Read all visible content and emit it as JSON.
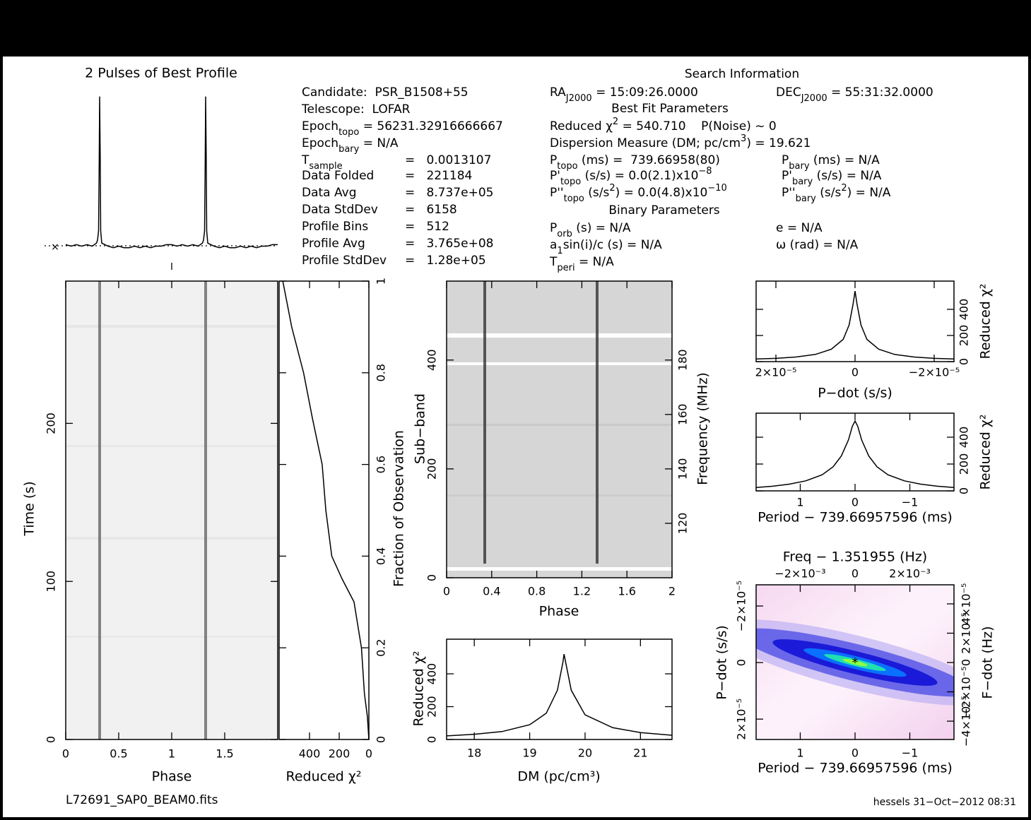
{
  "info": {
    "left": [
      {
        "label": [
          "Candidate:  PSR_B1508+55"
        ]
      },
      {
        "label": [
          "Telescope:  LOFAR"
        ]
      },
      {
        "label": [
          "Epoch",
          {
            "sub": "topo"
          },
          " = 56231.32916666667"
        ]
      },
      {
        "label": [
          "Epoch",
          {
            "sub": "bary"
          },
          " = N/A"
        ]
      },
      {
        "label": [
          "T",
          {
            "sub": "sample"
          }
        ],
        "value": "=   0.0013107"
      },
      {
        "label": [
          "Data Folded"
        ],
        "value": "=   221184"
      },
      {
        "label": [
          "Data Avg"
        ],
        "value": "=   8.737e+05"
      },
      {
        "label": [
          "Data StdDev"
        ],
        "value": "=   6158"
      },
      {
        "label": [
          "Profile Bins"
        ],
        "value": "=   512"
      },
      {
        "label": [
          "Profile Avg"
        ],
        "value": "=   3.765e+08"
      },
      {
        "label": [
          "Profile StdDev"
        ],
        "value": "=   1.28e+05"
      }
    ],
    "search": [
      [
        "Search Information"
      ],
      [
        "RA",
        {
          "sub": "J2000"
        },
        " = 15:09:26.0000"
      ],
      [
        "DEC",
        {
          "sub": "J2000"
        },
        " = 55:31:32.0000"
      ],
      [
        "Best Fit Parameters"
      ],
      [
        "Reduced χ",
        {
          "sup": "2"
        },
        " = 540.710    P(Noise) ~ 0"
      ],
      [
        "Dispersion Measure (DM; pc/cm",
        {
          "sup": "3"
        },
        ") = 19.621"
      ],
      [
        "P",
        {
          "sub": "topo"
        },
        " (ms) =  739.66958(80)"
      ],
      [
        "P",
        {
          "sub": "bary"
        },
        " (ms) = N/A"
      ],
      [
        "P'",
        {
          "sub": "topo"
        },
        " (s/s) = 0.0(2.1)x10",
        {
          "sup": "−8"
        }
      ],
      [
        "P'",
        {
          "sub": "bary"
        },
        " (s/s) = N/A"
      ],
      [
        "P''",
        {
          "sub": "topo"
        },
        " (s/s",
        {
          "sup": "2"
        },
        ") = 0.0(4.8)x10",
        {
          "sup": "−10"
        }
      ],
      [
        "P''",
        {
          "sub": "bary"
        },
        " (s/s",
        {
          "sup": "2"
        },
        ") = N/A"
      ],
      [
        "Binary Parameters"
      ],
      [
        "P",
        {
          "sub": "orb"
        },
        " (s) = N/A"
      ],
      [
        "e = N/A"
      ],
      [
        "a",
        {
          "sub": "1"
        },
        "sin(i)/c (s) = N/A"
      ],
      [
        "ω (rad) = N/A"
      ],
      [
        "T",
        {
          "sub": "peri"
        },
        " = N/A"
      ]
    ]
  },
  "footer": {
    "file": "L72691_SAP0_BEAM0.fits",
    "stamp": "hessels 31−Oct−2012 08:31"
  },
  "chart_data": [
    {
      "type": "line",
      "title": "2 Pulses of Best Profile",
      "xlim": [
        0,
        2
      ],
      "ylim": [
        -0.03,
        1.02
      ],
      "x": [
        0,
        0.05,
        0.1,
        0.15,
        0.2,
        0.25,
        0.29,
        0.3,
        0.31,
        0.315,
        0.32,
        0.325,
        0.33,
        0.34,
        0.4,
        0.45,
        0.5,
        0.55,
        0.6,
        0.65,
        0.7,
        0.75,
        0.8,
        0.85,
        0.9,
        0.95,
        1.0,
        1.05,
        1.1,
        1.15,
        1.2,
        1.25,
        1.29,
        1.3,
        1.31,
        1.315,
        1.32,
        1.325,
        1.33,
        1.34,
        1.4,
        1.45,
        1.5,
        1.55,
        1.6,
        1.65,
        1.7,
        1.75,
        1.8,
        1.85,
        1.9,
        1.95,
        2.0
      ],
      "values": [
        0.01,
        0.0,
        0.01,
        0.0,
        0.01,
        0.0,
        0.02,
        0.04,
        0.1,
        0.5,
        0.98,
        0.6,
        0.1,
        0.02,
        0.0,
        -0.01,
        0.0,
        -0.01,
        -0.01,
        0.0,
        -0.01,
        0.0,
        -0.01,
        0.0,
        0.0,
        0.01,
        0.01,
        0.0,
        0.01,
        0.0,
        0.01,
        0.0,
        0.02,
        0.04,
        0.1,
        0.5,
        0.98,
        0.6,
        0.1,
        0.02,
        0.0,
        -0.01,
        0.0,
        -0.01,
        -0.01,
        0.0,
        -0.01,
        0.0,
        -0.01,
        0.0,
        0.0,
        0.01,
        0.01
      ]
    },
    {
      "type": "image",
      "xlabel": "Phase",
      "ylabel": "Time (s)",
      "xlim": [
        0,
        2
      ],
      "xticks": [
        0,
        0.5,
        1,
        1.5
      ],
      "ylim": [
        0,
        290
      ],
      "yticks": [
        0,
        100,
        200
      ]
    },
    {
      "type": "hline",
      "xlabel": "Reduced χ²",
      "ylabel": "Fraction of Observation",
      "xlim": [
        605,
        0
      ],
      "xticks": [
        0,
        200,
        400
      ],
      "ylim": [
        0,
        1
      ],
      "yticks": [
        0,
        0.2,
        0.4,
        0.6,
        0.8,
        1
      ],
      "x": [
        0,
        0.05,
        0.1,
        0.2,
        0.3,
        0.35,
        0.4,
        0.5,
        0.6,
        0.7,
        0.8,
        0.9,
        1.0
      ],
      "values": [
        0,
        10,
        30,
        50,
        100,
        180,
        250,
        290,
        315,
        380,
        440,
        520,
        580
      ]
    },
    {
      "type": "image",
      "xlabel": "Phase",
      "ylabel": "Sub−band",
      "y2label": "Frequency (MHz)",
      "xlim": [
        0,
        2
      ],
      "xticks": [
        0,
        0.4,
        0.8,
        1.2,
        1.6,
        2
      ],
      "ylim": [
        0,
        545
      ],
      "yticks": [
        0,
        200,
        400
      ],
      "y2lim": [
        100,
        209
      ],
      "y2ticks": [
        120,
        140,
        160,
        180
      ]
    },
    {
      "type": "line",
      "xlabel": "DM (pc/cm³)",
      "ylabel": "Reduced χ²",
      "xlim": [
        17.5,
        21.57
      ],
      "xticks": [
        18,
        19,
        20,
        21
      ],
      "ylim": [
        0,
        611
      ],
      "yticks": [
        0,
        200,
        400
      ],
      "x": [
        17.5,
        18,
        18.5,
        19,
        19.3,
        19.5,
        19.6,
        19.62,
        19.65,
        19.75,
        20,
        20.5,
        21,
        21.57
      ],
      "values": [
        22,
        32,
        48,
        90,
        160,
        300,
        470,
        520,
        470,
        300,
        150,
        72,
        42,
        26
      ]
    },
    {
      "type": "line",
      "xlabel": "P−dot (s/s)",
      "ylabel": "Reduced χ²",
      "xlim": [
        2.5e-05,
        -2.5e-05
      ],
      "xticks": [
        {
          "value": 2e-05,
          "label": "2×10⁻⁵"
        },
        0,
        {
          "value": -2e-05,
          "label": "−2×10⁻⁵"
        }
      ],
      "ylim": [
        0,
        616
      ],
      "yticks": [
        0,
        200,
        400
      ],
      "x": [
        2.5e-05,
        2e-05,
        1.5e-05,
        1e-05,
        6e-06,
        3e-06,
        1.5e-06,
        5e-07,
        0,
        -5e-07,
        -1.5e-06,
        -3e-06,
        -6e-06,
        -1e-05,
        -1.5e-05,
        -2e-05,
        -2.5e-05
      ],
      "values": [
        20,
        25,
        35,
        55,
        95,
        170,
        280,
        440,
        540,
        440,
        280,
        170,
        95,
        55,
        35,
        25,
        20
      ]
    },
    {
      "type": "line",
      "xlabel": "Period − 739.66957596 (ms)",
      "ylabel": "Reduced χ²",
      "xlim": [
        1.806,
        -1.806
      ],
      "xticks": [
        1,
        0,
        {
          "value": -1,
          "label": "−1"
        }
      ],
      "ylim": [
        0,
        579
      ],
      "yticks": [
        0,
        200,
        400
      ],
      "x": [
        1.806,
        1.5,
        1.2,
        0.9,
        0.6,
        0.4,
        0.25,
        0.12,
        0.05,
        0,
        -0.05,
        -0.12,
        -0.25,
        -0.4,
        -0.6,
        -0.9,
        -1.2,
        -1.5,
        -1.806
      ],
      "values": [
        25,
        35,
        50,
        75,
        120,
        180,
        260,
        380,
        480,
        520,
        480,
        380,
        260,
        180,
        120,
        75,
        50,
        35,
        25
      ]
    },
    {
      "type": "heatmap",
      "x2label": "Freq − 1.351955 (Hz)",
      "xlabel": "Period − 739.66957596 (ms)",
      "ylabel": "P−dot (s/s)",
      "y2label": "F−dot (Hz)",
      "xlim": [
        1.806,
        -1.806
      ],
      "xticks": [
        1,
        0,
        {
          "value": -1,
          "label": "−1"
        }
      ],
      "x2lim": [
        -0.00361,
        0.00361
      ],
      "x2ticks": [
        {
          "value": -0.002,
          "label": "−2×10⁻³"
        },
        0,
        {
          "value": 0.002,
          "label": "2×10⁻³"
        }
      ],
      "ylim": [
        2.72e-05,
        -2.75e-05
      ],
      "yticks": [
        {
          "value": -2e-05,
          "label": "−2×10⁻⁵"
        },
        0,
        {
          "value": 2e-05,
          "label": "2×10⁻⁵"
        }
      ],
      "y2lim": [
        -5.25e-05,
        5.3e-05
      ],
      "y2ticks": [
        {
          "value": 4e-05,
          "label": "4×10⁻⁵"
        },
        {
          "value": 2e-05,
          "label": "2×10⁻⁵"
        },
        0,
        {
          "value": -2e-05,
          "label": "−2×10⁻⁵"
        },
        {
          "value": -4e-05,
          "label": "−4×10⁻⁵"
        }
      ]
    }
  ]
}
